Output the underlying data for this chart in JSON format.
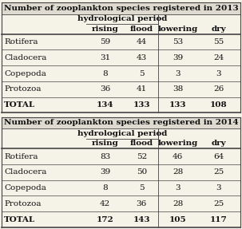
{
  "title_2013": "Number of zooplankton species registered in 2013",
  "title_2014": "Number of zooplankton species registered in 2014",
  "subheader": "hydrological period",
  "col_headers": [
    "",
    "rising",
    "flood",
    "lowering",
    "dry"
  ],
  "rows_2013": [
    [
      "Rotifera",
      "59",
      "44",
      "53",
      "55"
    ],
    [
      "Cladocera",
      "31",
      "43",
      "39",
      "24"
    ],
    [
      "Copepoda",
      "8",
      "5",
      "3",
      "3"
    ],
    [
      "Protozoa",
      "36",
      "41",
      "38",
      "26"
    ],
    [
      "TOTAL",
      "134",
      "133",
      "133",
      "108"
    ]
  ],
  "rows_2014": [
    [
      "Rotifera",
      "83",
      "52",
      "46",
      "64"
    ],
    [
      "Cladocera",
      "39",
      "50",
      "28",
      "25"
    ],
    [
      "Copepoda",
      "8",
      "5",
      "3",
      "3"
    ],
    [
      "Protozoa",
      "42",
      "36",
      "28",
      "25"
    ],
    [
      "TOTAL",
      "172",
      "143",
      "105",
      "117"
    ]
  ],
  "bg_color": "#f5f2e8",
  "title_bg": "#dedad0",
  "line_color": "#444444",
  "text_color": "#111111",
  "font_size": 7.5,
  "title_font_size": 7.5
}
